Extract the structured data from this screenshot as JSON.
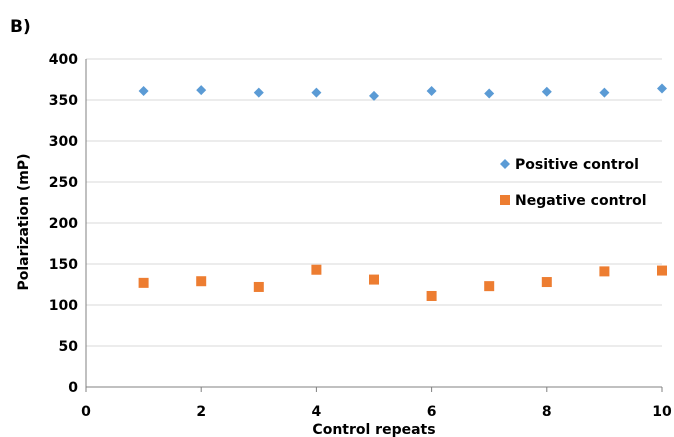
{
  "chart_data": {
    "type": "scatter",
    "panel_label": "B)",
    "xlabel": "Control repeats",
    "ylabel": "Polarization (mP)",
    "xlim": [
      0,
      10
    ],
    "ylim": [
      0,
      400
    ],
    "xticks": [
      0,
      2,
      4,
      6,
      8,
      10
    ],
    "yticks": [
      0,
      50,
      100,
      150,
      200,
      250,
      300,
      350,
      400
    ],
    "grid": "horizontal",
    "legend_position": "right",
    "series": [
      {
        "name": "Positive control",
        "marker": "diamond",
        "color": "#5b9bd5",
        "x": [
          1,
          2,
          3,
          4,
          5,
          6,
          7,
          8,
          9,
          10
        ],
        "y": [
          361,
          362,
          359,
          359,
          355,
          361,
          358,
          360,
          359,
          364
        ]
      },
      {
        "name": "Negative control",
        "marker": "square",
        "color": "#ed7d31",
        "x": [
          1,
          2,
          3,
          4,
          5,
          6,
          7,
          8,
          9,
          10
        ],
        "y": [
          127,
          129,
          122,
          143,
          131,
          111,
          123,
          128,
          141,
          142
        ]
      }
    ]
  }
}
